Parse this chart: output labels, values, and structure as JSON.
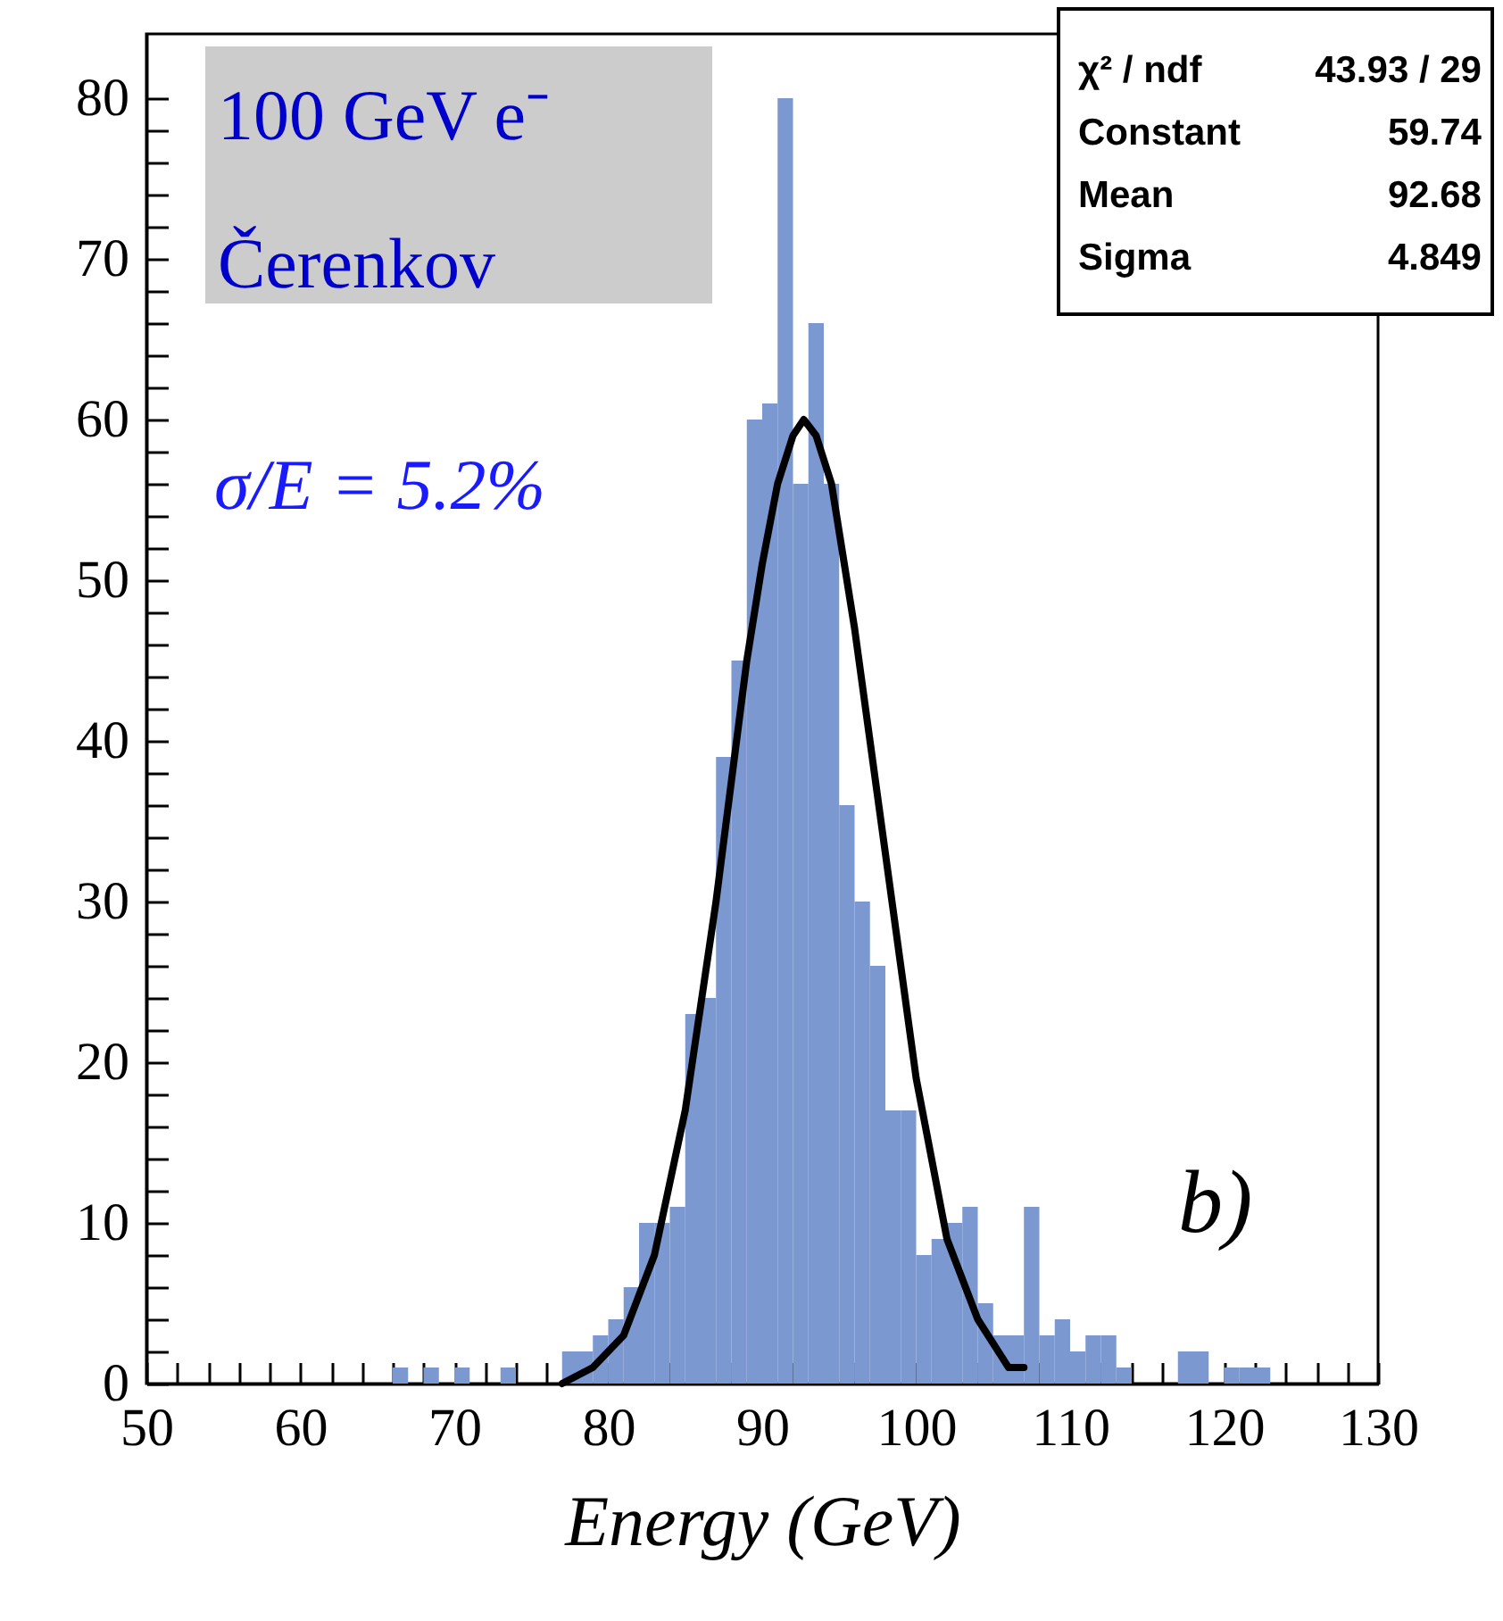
{
  "chart_data": [
    {
      "type": "histogram",
      "xlabel": "Energy (GeV)",
      "bins": [
        50,
        51,
        52,
        53,
        54,
        55,
        56,
        57,
        58,
        59,
        60,
        61,
        62,
        63,
        64,
        65,
        66,
        67,
        68,
        69,
        70,
        71,
        72,
        73,
        74,
        75,
        76,
        77,
        78,
        79,
        80,
        81,
        82,
        83,
        84,
        85,
        86,
        87,
        88,
        89,
        90,
        91,
        92,
        93,
        94,
        95,
        96,
        97,
        98,
        99,
        100,
        101,
        102,
        103,
        104,
        105,
        106,
        107,
        108,
        109,
        110,
        111,
        112,
        113,
        114,
        115,
        116,
        117,
        118,
        119,
        120,
        121,
        122,
        123,
        124,
        125,
        126,
        127,
        128,
        129,
        130
      ],
      "values": [
        0,
        0,
        0,
        0,
        0,
        0,
        0,
        0,
        0,
        0,
        0,
        0,
        0,
        0,
        0,
        0,
        1,
        0,
        1,
        0,
        1,
        0,
        0,
        1,
        0,
        0,
        0,
        2,
        2,
        3,
        4,
        6,
        10,
        10,
        11,
        23,
        24,
        39,
        45,
        60,
        61,
        80,
        56,
        66,
        56,
        36,
        30,
        26,
        17,
        17,
        8,
        9,
        10,
        11,
        5,
        3,
        3,
        11,
        3,
        4,
        2,
        3,
        3,
        1,
        0,
        0,
        0,
        2,
        2,
        0,
        1,
        1,
        1,
        0,
        0,
        0,
        0,
        0,
        0,
        0
      ],
      "color": "#7b98d0",
      "series": [
        {
          "type": "line",
          "color": "#000000",
          "x": [
            77,
            79,
            81,
            83,
            85,
            87,
            89,
            90,
            91,
            92,
            92.7,
            93.5,
            94.5,
            96,
            98,
            100,
            102,
            104,
            106,
            107
          ],
          "values": [
            0,
            1,
            3,
            8,
            17,
            30,
            45,
            51,
            56,
            59,
            60,
            59,
            56,
            47,
            33,
            19,
            9,
            4,
            1,
            1
          ]
        }
      ],
      "xlim": [
        50,
        130
      ],
      "xticks": [
        50,
        {
          "value": 52,
          "label": null
        },
        {
          "value": 54,
          "label": null
        },
        {
          "value": 56,
          "label": null
        },
        {
          "value": 58,
          "label": null
        },
        60,
        {
          "value": 62,
          "label": null
        },
        {
          "value": 64,
          "label": null
        },
        {
          "value": 66,
          "label": null
        },
        {
          "value": 68,
          "label": null
        },
        70,
        {
          "value": 72,
          "label": null
        },
        {
          "value": 74,
          "label": null
        },
        {
          "value": 76,
          "label": null
        },
        {
          "value": 78,
          "label": null
        },
        80,
        {
          "value": 82,
          "label": null
        },
        {
          "value": 84,
          "label": null
        },
        {
          "value": 86,
          "label": null
        },
        {
          "value": 88,
          "label": null
        },
        90,
        {
          "value": 92,
          "label": null
        },
        {
          "value": 94,
          "label": null
        },
        {
          "value": 96,
          "label": null
        },
        {
          "value": 98,
          "label": null
        },
        100,
        {
          "value": 102,
          "label": null
        },
        {
          "value": 104,
          "label": null
        },
        {
          "value": 106,
          "label": null
        },
        {
          "value": 108,
          "label": null
        },
        110,
        {
          "value": 112,
          "label": null
        },
        {
          "value": 114,
          "label": null
        },
        {
          "value": 116,
          "label": null
        },
        {
          "value": 118,
          "label": null
        },
        120,
        {
          "value": 122,
          "label": null
        },
        {
          "value": 124,
          "label": null
        },
        {
          "value": 126,
          "label": null
        },
        {
          "value": 128,
          "label": null
        },
        130
      ],
      "ylim": [
        0,
        84
      ],
      "yticks": [
        0,
        {
          "value": 2,
          "label": null
        },
        {
          "value": 4,
          "label": null
        },
        {
          "value": 6,
          "label": null
        },
        {
          "value": 8,
          "label": null
        },
        10,
        {
          "value": 12,
          "label": null
        },
        {
          "value": 14,
          "label": null
        },
        {
          "value": 16,
          "label": null
        },
        {
          "value": 18,
          "label": null
        },
        20,
        {
          "value": 22,
          "label": null
        },
        {
          "value": 24,
          "label": null
        },
        {
          "value": 26,
          "label": null
        },
        {
          "value": 28,
          "label": null
        },
        30,
        {
          "value": 32,
          "label": null
        },
        {
          "value": 34,
          "label": null
        },
        {
          "value": 36,
          "label": null
        },
        {
          "value": 38,
          "label": null
        },
        40,
        {
          "value": 42,
          "label": null
        },
        {
          "value": 44,
          "label": null
        },
        {
          "value": 46,
          "label": null
        },
        {
          "value": 48,
          "label": null
        },
        50,
        {
          "value": 52,
          "label": null
        },
        {
          "value": 54,
          "label": null
        },
        {
          "value": 56,
          "label": null
        },
        {
          "value": 58,
          "label": null
        },
        60,
        {
          "value": 62,
          "label": null
        },
        {
          "value": 64,
          "label": null
        },
        {
          "value": 66,
          "label": null
        },
        {
          "value": 68,
          "label": null
        },
        70,
        {
          "value": 72,
          "label": null
        },
        {
          "value": 74,
          "label": null
        },
        {
          "value": 76,
          "label": null
        },
        {
          "value": 78,
          "label": null
        },
        80
      ],
      "grid": false,
      "annotations": [
        "100 GeV e⁻",
        "Čerenkov",
        "σ/E = 5.2%",
        "b)",
        "χ² / ndf",
        "43.93 / 29",
        "Constant",
        "59.74",
        "Mean",
        "92.68",
        "Sigma",
        "4.849"
      ]
    }
  ]
}
